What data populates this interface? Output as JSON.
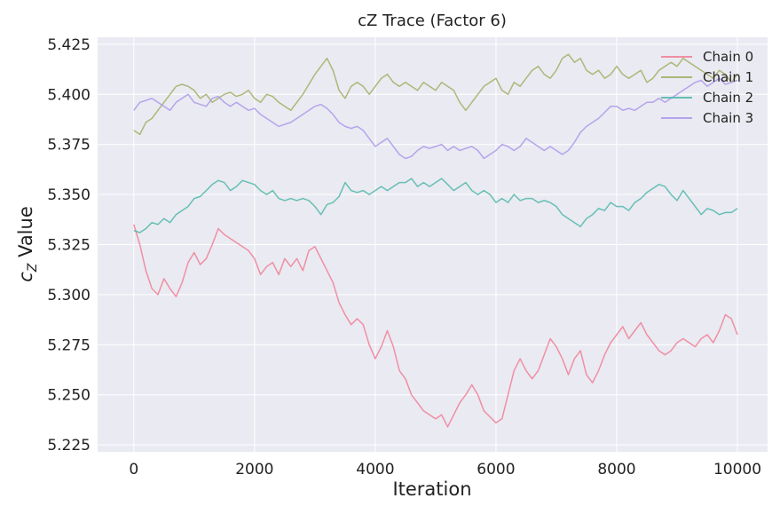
{
  "chart_data": {
    "type": "line",
    "title": "cZ Trace (Factor 6)",
    "xlabel": "Iteration",
    "ylabel_main": "c",
    "ylabel_sub": "Z",
    "ylabel_rest": " Value",
    "xlim": [
      -600,
      10500
    ],
    "ylim": [
      5.2215,
      5.4285
    ],
    "xticks": [
      0,
      2000,
      4000,
      6000,
      8000,
      10000
    ],
    "xtick_labels": [
      "0",
      "2000",
      "4000",
      "6000",
      "8000",
      "10000"
    ],
    "yticks": [
      5.225,
      5.25,
      5.275,
      5.3,
      5.325,
      5.35,
      5.375,
      5.4,
      5.425
    ],
    "ytick_labels": [
      "5.225",
      "5.250",
      "5.275",
      "5.300",
      "5.325",
      "5.350",
      "5.375",
      "5.400",
      "5.425"
    ],
    "grid": true,
    "legend_position": "top-right",
    "series": [
      {
        "name": "Chain 0",
        "color": "#f07f95",
        "x": [
          0,
          100,
          200,
          300,
          400,
          500,
          600,
          700,
          800,
          900,
          1000,
          1100,
          1200,
          1300,
          1400,
          1500,
          1600,
          1700,
          1800,
          1900,
          2000,
          2100,
          2200,
          2300,
          2400,
          2500,
          2600,
          2700,
          2800,
          2900,
          3000,
          3100,
          3200,
          3300,
          3400,
          3500,
          3600,
          3700,
          3800,
          3900,
          4000,
          4100,
          4200,
          4300,
          4400,
          4500,
          4600,
          4700,
          4800,
          4900,
          5000,
          5100,
          5200,
          5300,
          5400,
          5500,
          5600,
          5700,
          5800,
          5900,
          6000,
          6100,
          6200,
          6300,
          6400,
          6500,
          6600,
          6700,
          6800,
          6900,
          7000,
          7100,
          7200,
          7300,
          7400,
          7500,
          7600,
          7700,
          7800,
          7900,
          8000,
          8100,
          8200,
          8300,
          8400,
          8500,
          8600,
          8700,
          8800,
          8900,
          9000,
          9100,
          9200,
          9300,
          9400,
          9500,
          9600,
          9700,
          9800,
          9900,
          10000
        ],
        "y": [
          5.335,
          5.325,
          5.312,
          5.303,
          5.3,
          5.308,
          5.303,
          5.299,
          5.306,
          5.316,
          5.321,
          5.315,
          5.318,
          5.325,
          5.333,
          5.33,
          5.328,
          5.326,
          5.324,
          5.322,
          5.318,
          5.31,
          5.314,
          5.316,
          5.31,
          5.318,
          5.314,
          5.318,
          5.312,
          5.322,
          5.324,
          5.318,
          5.312,
          5.306,
          5.296,
          5.29,
          5.285,
          5.288,
          5.285,
          5.275,
          5.268,
          5.274,
          5.282,
          5.274,
          5.262,
          5.258,
          5.25,
          5.246,
          5.242,
          5.24,
          5.238,
          5.24,
          5.234,
          5.24,
          5.246,
          5.25,
          5.255,
          5.25,
          5.242,
          5.239,
          5.236,
          5.238,
          5.25,
          5.262,
          5.268,
          5.262,
          5.258,
          5.262,
          5.27,
          5.278,
          5.274,
          5.268,
          5.26,
          5.268,
          5.272,
          5.26,
          5.256,
          5.262,
          5.27,
          5.276,
          5.28,
          5.284,
          5.278,
          5.282,
          5.286,
          5.28,
          5.276,
          5.272,
          5.27,
          5.272,
          5.276,
          5.278,
          5.276,
          5.274,
          5.278,
          5.28,
          5.276,
          5.282,
          5.29,
          5.288,
          5.28
        ]
      },
      {
        "name": "Chain 1",
        "color": "#a3ad62",
        "x": [
          0,
          100,
          200,
          300,
          400,
          500,
          600,
          700,
          800,
          900,
          1000,
          1100,
          1200,
          1300,
          1400,
          1500,
          1600,
          1700,
          1800,
          1900,
          2000,
          2100,
          2200,
          2300,
          2400,
          2500,
          2600,
          2700,
          2800,
          2900,
          3000,
          3100,
          3200,
          3300,
          3400,
          3500,
          3600,
          3700,
          3800,
          3900,
          4000,
          4100,
          4200,
          4300,
          4400,
          4500,
          4600,
          4700,
          4800,
          4900,
          5000,
          5100,
          5200,
          5300,
          5400,
          5500,
          5600,
          5700,
          5800,
          5900,
          6000,
          6100,
          6200,
          6300,
          6400,
          6500,
          6600,
          6700,
          6800,
          6900,
          7000,
          7100,
          7200,
          7300,
          7400,
          7500,
          7600,
          7700,
          7800,
          7900,
          8000,
          8100,
          8200,
          8300,
          8400,
          8500,
          8600,
          8700,
          8800,
          8900,
          9000,
          9100,
          9200,
          9300,
          9400,
          9500,
          9600,
          9700,
          9800,
          9900,
          10000
        ],
        "y": [
          5.382,
          5.38,
          5.386,
          5.388,
          5.392,
          5.396,
          5.4,
          5.404,
          5.405,
          5.404,
          5.402,
          5.398,
          5.4,
          5.396,
          5.398,
          5.4,
          5.401,
          5.399,
          5.4,
          5.402,
          5.398,
          5.396,
          5.4,
          5.399,
          5.396,
          5.394,
          5.392,
          5.396,
          5.4,
          5.405,
          5.41,
          5.414,
          5.418,
          5.412,
          5.402,
          5.398,
          5.404,
          5.406,
          5.404,
          5.4,
          5.404,
          5.408,
          5.41,
          5.406,
          5.404,
          5.406,
          5.404,
          5.402,
          5.406,
          5.404,
          5.402,
          5.406,
          5.404,
          5.402,
          5.396,
          5.392,
          5.396,
          5.4,
          5.404,
          5.406,
          5.408,
          5.402,
          5.4,
          5.406,
          5.404,
          5.408,
          5.412,
          5.414,
          5.41,
          5.408,
          5.412,
          5.418,
          5.42,
          5.416,
          5.418,
          5.412,
          5.41,
          5.412,
          5.408,
          5.41,
          5.414,
          5.41,
          5.408,
          5.41,
          5.412,
          5.406,
          5.408,
          5.412,
          5.414,
          5.416,
          5.414,
          5.418,
          5.416,
          5.414,
          5.412,
          5.41,
          5.408,
          5.412,
          5.41,
          5.406,
          5.41
        ]
      },
      {
        "name": "Chain 2",
        "color": "#4fb7a9",
        "x": [
          0,
          100,
          200,
          300,
          400,
          500,
          600,
          700,
          800,
          900,
          1000,
          1100,
          1200,
          1300,
          1400,
          1500,
          1600,
          1700,
          1800,
          1900,
          2000,
          2100,
          2200,
          2300,
          2400,
          2500,
          2600,
          2700,
          2800,
          2900,
          3000,
          3100,
          3200,
          3300,
          3400,
          3500,
          3600,
          3700,
          3800,
          3900,
          4000,
          4100,
          4200,
          4300,
          4400,
          4500,
          4600,
          4700,
          4800,
          4900,
          5000,
          5100,
          5200,
          5300,
          5400,
          5500,
          5600,
          5700,
          5800,
          5900,
          6000,
          6100,
          6200,
          6300,
          6400,
          6500,
          6600,
          6700,
          6800,
          6900,
          7000,
          7100,
          7200,
          7300,
          7400,
          7500,
          7600,
          7700,
          7800,
          7900,
          8000,
          8100,
          8200,
          8300,
          8400,
          8500,
          8600,
          8700,
          8800,
          8900,
          9000,
          9100,
          9200,
          9300,
          9400,
          9500,
          9600,
          9700,
          9800,
          9900,
          10000
        ],
        "y": [
          5.332,
          5.331,
          5.333,
          5.336,
          5.335,
          5.338,
          5.336,
          5.34,
          5.342,
          5.344,
          5.348,
          5.349,
          5.352,
          5.355,
          5.357,
          5.356,
          5.352,
          5.354,
          5.357,
          5.356,
          5.355,
          5.352,
          5.35,
          5.352,
          5.348,
          5.347,
          5.348,
          5.347,
          5.348,
          5.347,
          5.344,
          5.34,
          5.345,
          5.346,
          5.349,
          5.356,
          5.352,
          5.351,
          5.352,
          5.35,
          5.352,
          5.354,
          5.352,
          5.354,
          5.356,
          5.356,
          5.358,
          5.354,
          5.356,
          5.354,
          5.356,
          5.358,
          5.355,
          5.352,
          5.354,
          5.356,
          5.352,
          5.35,
          5.352,
          5.35,
          5.346,
          5.348,
          5.346,
          5.35,
          5.347,
          5.348,
          5.348,
          5.346,
          5.347,
          5.346,
          5.344,
          5.34,
          5.338,
          5.336,
          5.334,
          5.338,
          5.34,
          5.343,
          5.342,
          5.346,
          5.344,
          5.344,
          5.342,
          5.346,
          5.348,
          5.351,
          5.353,
          5.355,
          5.354,
          5.35,
          5.347,
          5.352,
          5.348,
          5.344,
          5.34,
          5.343,
          5.342,
          5.34,
          5.341,
          5.341,
          5.343
        ]
      },
      {
        "name": "Chain 3",
        "color": "#ab98ea",
        "x": [
          0,
          100,
          200,
          300,
          400,
          500,
          600,
          700,
          800,
          900,
          1000,
          1100,
          1200,
          1300,
          1400,
          1500,
          1600,
          1700,
          1800,
          1900,
          2000,
          2100,
          2200,
          2300,
          2400,
          2500,
          2600,
          2700,
          2800,
          2900,
          3000,
          3100,
          3200,
          3300,
          3400,
          3500,
          3600,
          3700,
          3800,
          3900,
          4000,
          4100,
          4200,
          4300,
          4400,
          4500,
          4600,
          4700,
          4800,
          4900,
          5000,
          5100,
          5200,
          5300,
          5400,
          5500,
          5600,
          5700,
          5800,
          5900,
          6000,
          6100,
          6200,
          6300,
          6400,
          6500,
          6600,
          6700,
          6800,
          6900,
          7000,
          7100,
          7200,
          7300,
          7400,
          7500,
          7600,
          7700,
          7800,
          7900,
          8000,
          8100,
          8200,
          8300,
          8400,
          8500,
          8600,
          8700,
          8800,
          8900,
          9000,
          9100,
          9200,
          9300,
          9400,
          9500,
          9600,
          9700,
          9800,
          9900,
          10000
        ],
        "y": [
          5.392,
          5.396,
          5.397,
          5.398,
          5.396,
          5.394,
          5.392,
          5.396,
          5.398,
          5.4,
          5.396,
          5.395,
          5.394,
          5.398,
          5.399,
          5.396,
          5.394,
          5.396,
          5.394,
          5.392,
          5.393,
          5.39,
          5.388,
          5.386,
          5.384,
          5.385,
          5.386,
          5.388,
          5.39,
          5.392,
          5.394,
          5.395,
          5.393,
          5.39,
          5.386,
          5.384,
          5.383,
          5.384,
          5.382,
          5.378,
          5.374,
          5.376,
          5.378,
          5.374,
          5.37,
          5.368,
          5.369,
          5.372,
          5.374,
          5.373,
          5.374,
          5.375,
          5.372,
          5.374,
          5.372,
          5.373,
          5.374,
          5.372,
          5.368,
          5.37,
          5.372,
          5.375,
          5.374,
          5.372,
          5.374,
          5.378,
          5.376,
          5.374,
          5.372,
          5.374,
          5.372,
          5.37,
          5.372,
          5.376,
          5.381,
          5.384,
          5.386,
          5.388,
          5.391,
          5.394,
          5.394,
          5.392,
          5.393,
          5.392,
          5.394,
          5.396,
          5.396,
          5.398,
          5.396,
          5.398,
          5.4,
          5.402,
          5.404,
          5.406,
          5.407,
          5.404,
          5.406,
          5.408,
          5.405,
          5.406,
          5.407
        ]
      }
    ]
  }
}
